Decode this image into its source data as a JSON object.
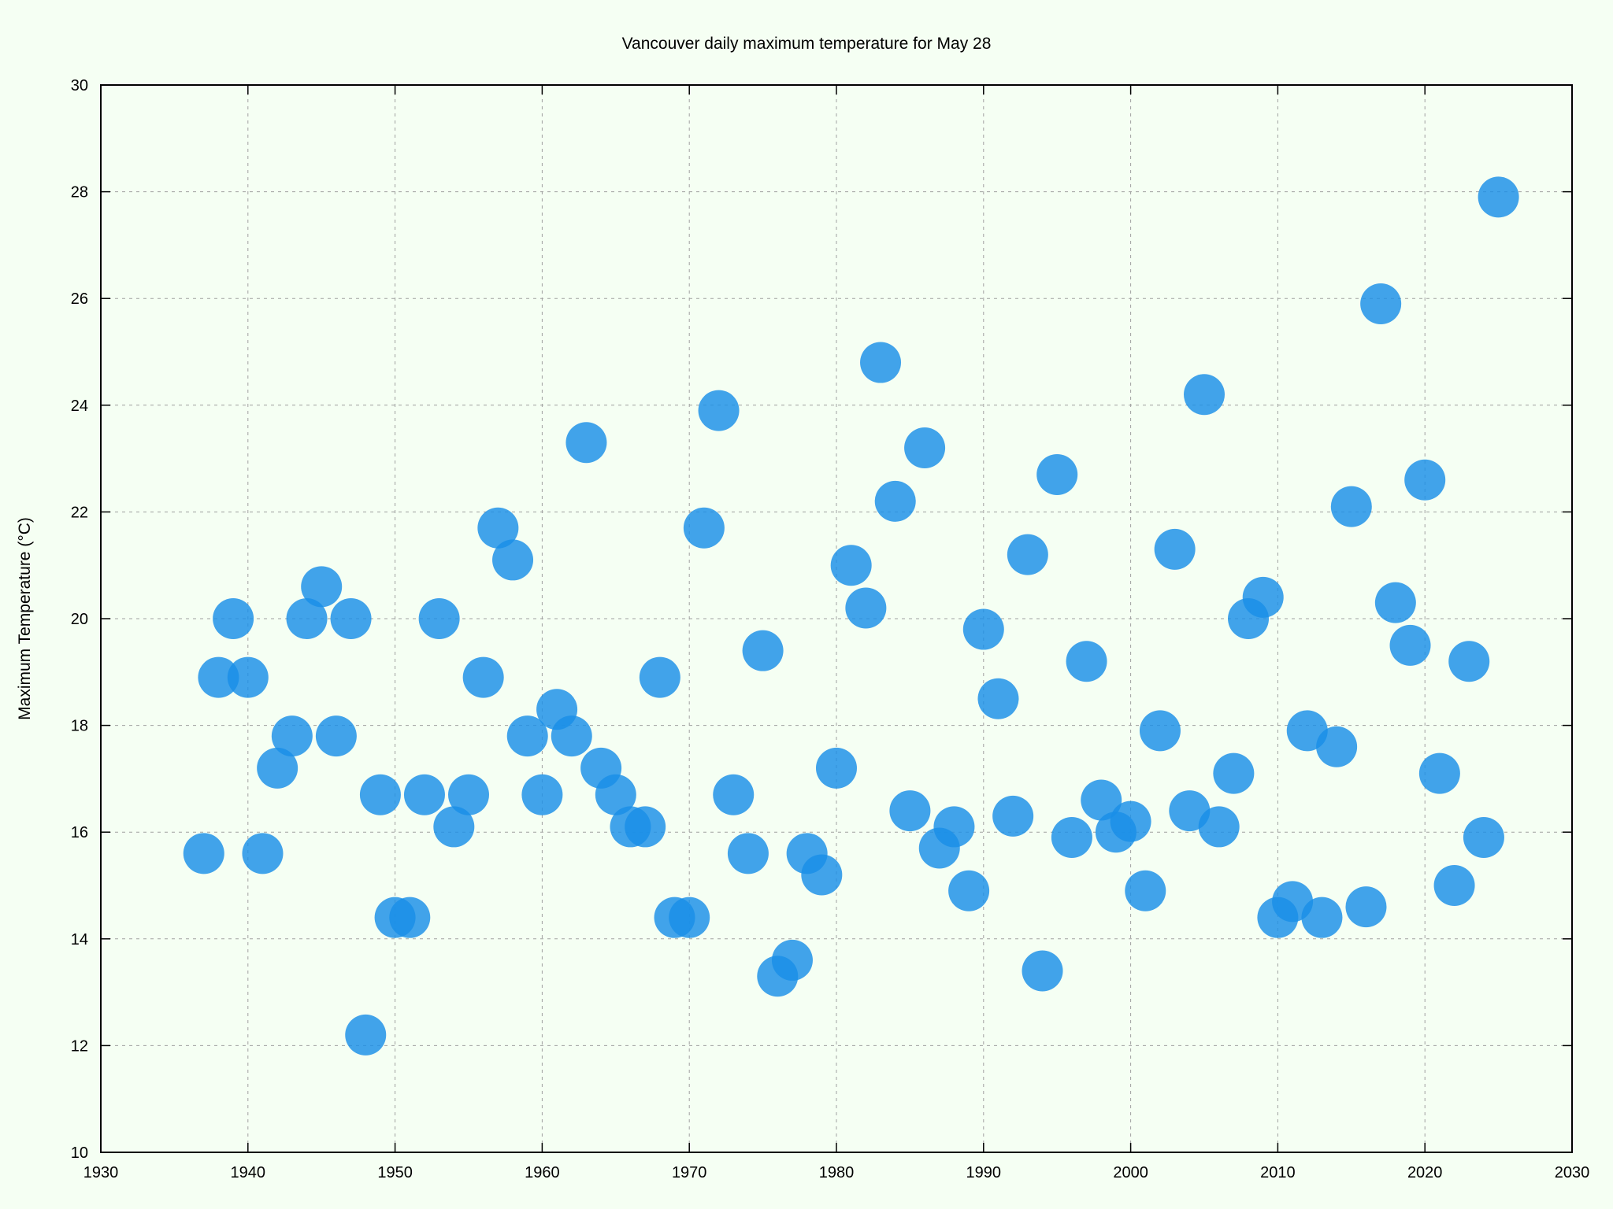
{
  "chart_data": {
    "type": "scatter",
    "title": "Vancouver daily maximum temperature for May 28",
    "xlabel": "",
    "ylabel": "Maximum Temperature (°C)",
    "xlim": [
      1930,
      2030
    ],
    "ylim": [
      10,
      30
    ],
    "xticks": [
      1930,
      1940,
      1950,
      1960,
      1970,
      1980,
      1990,
      2000,
      2010,
      2020,
      2030
    ],
    "yticks": [
      10,
      12,
      14,
      16,
      18,
      20,
      22,
      24,
      26,
      28,
      30
    ],
    "grid": true,
    "marker_color": "#1a8fe8",
    "series": [
      {
        "x": [
          1937,
          1938,
          1939,
          1940,
          1941,
          1942,
          1943,
          1944,
          1945,
          1946,
          1947,
          1948,
          1949,
          1950,
          1951,
          1952,
          1953,
          1954,
          1955,
          1956,
          1957,
          1958,
          1959,
          1960,
          1961,
          1962,
          1963,
          1964,
          1965,
          1966,
          1967,
          1968,
          1969,
          1970,
          1971,
          1972,
          1973,
          1974,
          1975,
          1976,
          1977,
          1978,
          1979,
          1980,
          1981,
          1982,
          1983,
          1984,
          1985,
          1986,
          1987,
          1988,
          1989,
          1990,
          1991,
          1992,
          1993,
          1994,
          1995,
          1996,
          1997,
          1998,
          1999,
          2000,
          2001,
          2002,
          2003,
          2004,
          2005,
          2006,
          2007,
          2008,
          2009,
          2010,
          2011,
          2012,
          2013,
          2014,
          2015,
          2016,
          2017,
          2018,
          2019,
          2020,
          2021,
          2022,
          2023,
          2024,
          2025
        ],
        "y": [
          15.6,
          18.9,
          20.0,
          18.9,
          15.6,
          17.2,
          17.8,
          20.0,
          20.6,
          17.8,
          20.0,
          12.2,
          16.7,
          14.4,
          14.4,
          16.7,
          20.0,
          16.1,
          16.7,
          18.9,
          21.7,
          21.1,
          17.8,
          16.7,
          18.3,
          17.8,
          23.3,
          17.2,
          16.7,
          16.1,
          16.1,
          18.9,
          14.4,
          14.4,
          21.7,
          23.9,
          16.7,
          15.6,
          19.4,
          13.3,
          13.6,
          15.6,
          15.2,
          17.2,
          21.0,
          20.2,
          24.8,
          22.2,
          16.4,
          23.2,
          15.7,
          16.1,
          14.9,
          19.8,
          18.5,
          16.3,
          21.2,
          13.4,
          22.7,
          15.9,
          19.2,
          16.6,
          16.0,
          16.2,
          14.9,
          17.9,
          21.3,
          16.4,
          24.2,
          16.1,
          17.1,
          20.0,
          20.4,
          14.4,
          14.7,
          17.9,
          14.4,
          17.6,
          22.1,
          14.6,
          25.9,
          20.3,
          19.5,
          22.6,
          17.1,
          15.0,
          19.2,
          15.9,
          27.9
        ]
      }
    ]
  }
}
